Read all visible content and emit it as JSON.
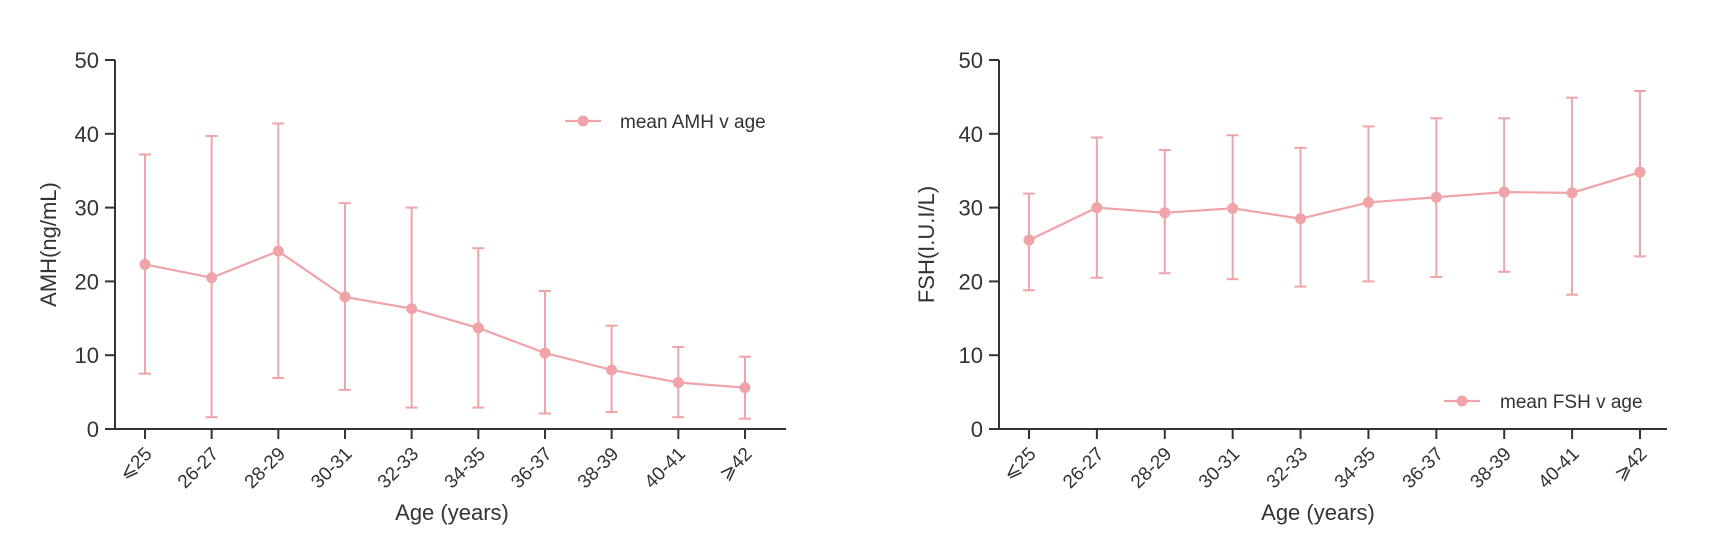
{
  "colors": {
    "series": "#f0a3a8",
    "axis": "#333333",
    "text": "#333333"
  },
  "chart_data": [
    {
      "type": "line",
      "title": "",
      "xlabel": "Age (years)",
      "ylabel": "AMH(ng/mL)",
      "ylim": [
        0,
        50
      ],
      "yticks": [
        0,
        10,
        20,
        30,
        40,
        50
      ],
      "grid": false,
      "legend_position": "top-right",
      "categories": [
        "⩽25",
        "26-27",
        "28-29",
        "30-31",
        "32-33",
        "34-35",
        "36-37",
        "38-39",
        "40-41",
        "⩾42"
      ],
      "series": [
        {
          "name": "mean AMH v age",
          "values": [
            22.3,
            20.5,
            24.1,
            17.9,
            16.3,
            13.7,
            10.3,
            8.0,
            6.3,
            5.6
          ],
          "error_low": [
            7.5,
            1.6,
            6.9,
            5.3,
            2.9,
            2.9,
            2.1,
            2.3,
            1.6,
            1.4
          ],
          "error_high": [
            37.2,
            39.7,
            41.4,
            30.6,
            30.0,
            24.5,
            18.7,
            14.0,
            11.1,
            9.8
          ]
        }
      ]
    },
    {
      "type": "line",
      "title": "",
      "xlabel": "Age (years)",
      "ylabel": "FSH(I.U.I/L)",
      "ylim": [
        0,
        50
      ],
      "yticks": [
        0,
        10,
        20,
        30,
        40,
        50
      ],
      "grid": false,
      "legend_position": "bottom-right",
      "categories": [
        "⩽25",
        "26-27",
        "28-29",
        "30-31",
        "32-33",
        "34-35",
        "36-37",
        "38-39",
        "40-41",
        "⩾42"
      ],
      "series": [
        {
          "name": "mean FSH v age",
          "values": [
            25.6,
            30.0,
            29.3,
            29.9,
            28.5,
            30.7,
            31.4,
            32.1,
            32.0,
            34.8
          ],
          "error_low": [
            18.8,
            20.5,
            21.1,
            20.3,
            19.3,
            20.0,
            20.6,
            21.3,
            18.2,
            23.4
          ],
          "error_high": [
            31.9,
            39.5,
            37.8,
            39.8,
            38.1,
            41.0,
            42.1,
            42.1,
            44.9,
            45.8
          ]
        }
      ]
    }
  ]
}
